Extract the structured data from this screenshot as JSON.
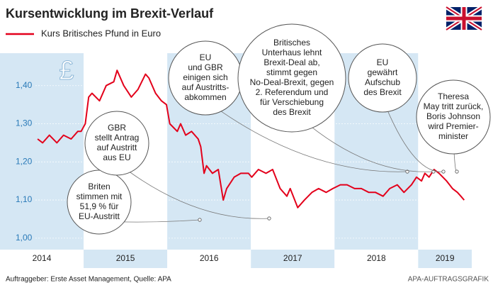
{
  "chart_data": {
    "type": "line",
    "title": "Kursentwicklung im Brexit-Verlauf",
    "currency_symbol": "£",
    "x": [
      2014.45,
      2014.51,
      2014.59,
      2014.68,
      2014.76,
      2014.85,
      2014.93,
      2014.97,
      2015.02,
      2015.06,
      2015.1,
      2015.19,
      2015.27,
      2015.36,
      2015.4,
      2015.48,
      2015.57,
      2015.65,
      2015.74,
      2015.78,
      2015.86,
      2015.93,
      2015.99,
      2016.03,
      2016.12,
      2016.16,
      2016.22,
      2016.29,
      2016.37,
      2016.4,
      2016.44,
      2016.47,
      2016.54,
      2016.61,
      2016.67,
      2016.71,
      2016.8,
      2016.88,
      2016.97,
      2017.01,
      2017.09,
      2017.18,
      2017.26,
      2017.35,
      2017.43,
      2017.47,
      2017.56,
      2017.64,
      2017.73,
      2017.81,
      2017.9,
      2017.98,
      2018.07,
      2018.15,
      2018.24,
      2018.32,
      2018.41,
      2018.49,
      2018.58,
      2018.66,
      2018.75,
      2018.83,
      2018.92,
      2018.98,
      2019.04,
      2019.08,
      2019.13,
      2019.19,
      2019.25,
      2019.34,
      2019.41,
      2019.47,
      2019.51,
      2019.55
    ],
    "series": [
      {
        "name": "Kurs Britisches Pfund in Euro",
        "color": "#e3001b",
        "values": [
          1.26,
          1.25,
          1.27,
          1.25,
          1.27,
          1.26,
          1.28,
          1.28,
          1.3,
          1.37,
          1.38,
          1.36,
          1.4,
          1.41,
          1.44,
          1.4,
          1.37,
          1.39,
          1.43,
          1.42,
          1.38,
          1.36,
          1.35,
          1.3,
          1.28,
          1.3,
          1.27,
          1.28,
          1.26,
          1.24,
          1.17,
          1.19,
          1.17,
          1.18,
          1.1,
          1.13,
          1.16,
          1.17,
          1.17,
          1.16,
          1.18,
          1.17,
          1.18,
          1.13,
          1.11,
          1.13,
          1.08,
          1.1,
          1.12,
          1.13,
          1.12,
          1.13,
          1.14,
          1.14,
          1.13,
          1.13,
          1.12,
          1.12,
          1.11,
          1.13,
          1.14,
          1.12,
          1.14,
          1.16,
          1.15,
          1.17,
          1.16,
          1.18,
          1.17,
          1.15,
          1.13,
          1.12,
          1.11,
          1.1
        ]
      }
    ],
    "xlim": [
      2014,
      2019.7
    ],
    "xticks": [
      2014,
      2015,
      2016,
      2017,
      2018,
      2019
    ],
    "ylim": [
      0.97,
      1.485
    ],
    "yticks": [
      {
        "value": 1.0,
        "label": "1,00"
      },
      {
        "value": 1.1,
        "label": "1,10"
      },
      {
        "value": 1.2,
        "label": "1,20"
      },
      {
        "value": 1.3,
        "label": "1,30"
      },
      {
        "value": 1.4,
        "label": "1,40"
      }
    ],
    "grid": true,
    "band_color": "#d5e7f4",
    "annotations": [
      {
        "lines": [
          "Briten",
          "stimmen mit",
          "51,9 % für",
          "EU-Austritt"
        ]
      },
      {
        "lines": [
          "GBR",
          "stellt Antrag",
          "auf Austritt",
          "aus EU"
        ]
      },
      {
        "lines": [
          "EU",
          "und GBR",
          "einigen sich",
          "auf Austritts-",
          "abkommen"
        ]
      },
      {
        "lines": [
          "Britisches",
          "Unterhaus lehnt",
          "Brexit-Deal ab,",
          "stimmt gegen",
          "No-Deal-Brexit, gegen",
          "2. Referendum und",
          "für Verschiebung",
          "des Brexit"
        ]
      },
      {
        "lines": [
          "EU",
          "gewährt",
          "Aufschub",
          "des Brexit"
        ]
      },
      {
        "lines": [
          "Theresa",
          "May tritt zurück,",
          "Boris Johnson",
          "wird Premier-",
          "minister"
        ]
      }
    ],
    "source": "Auftraggeber: Erste Asset Management, Quelle: APA",
    "credit": "APA-AUFTRAGSGRAFIK"
  }
}
